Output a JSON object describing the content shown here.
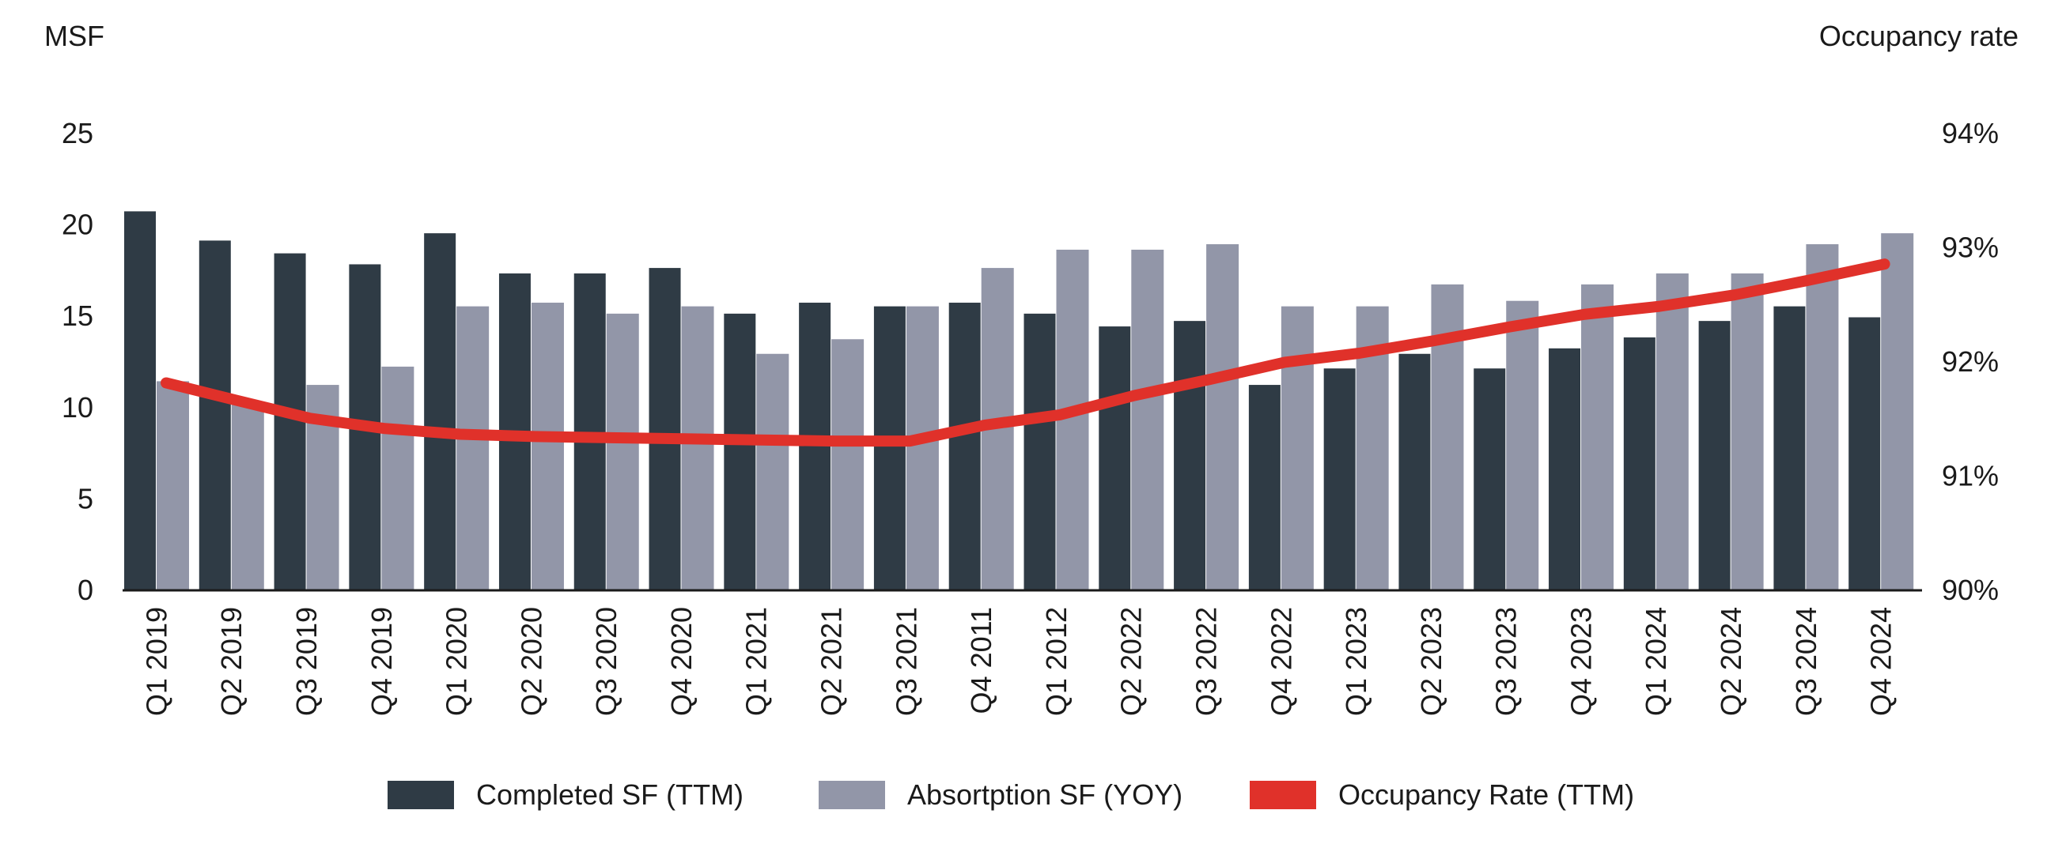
{
  "chart_data": {
    "type": "bar",
    "y_left_label": "MSF",
    "y_right_label": "Occupancy rate",
    "categories": [
      "Q1 2019",
      "Q2 2019",
      "Q3 2019",
      "Q4 2019",
      "Q1 2020",
      "Q2 2020",
      "Q3 2020",
      "Q4 2020",
      "Q1 2021",
      "Q2 2021",
      "Q3 2021",
      "Q4 2011",
      "Q1 2012",
      "Q2 2022",
      "Q3 2022",
      "Q4 2022",
      "Q1 2023",
      "Q2 2023",
      "Q3 2023",
      "Q4 2023",
      "Q1 2024",
      "Q2 2024",
      "Q3 2024",
      "Q4 2024"
    ],
    "y_left_lim": [
      0,
      25
    ],
    "y_left_ticks": [
      "0",
      "5",
      "10",
      "15",
      "20",
      "25"
    ],
    "y_right_lim": [
      90,
      94
    ],
    "y_right_ticks": [
      "90%",
      "91%",
      "92%",
      "93%",
      "94%"
    ],
    "grid": false,
    "legend_position": "bottom",
    "series": [
      {
        "name": "Completed SF (TTM)",
        "type": "bar",
        "axis": "left",
        "color": "#2f3b45",
        "values": [
          20.7,
          19.1,
          18.4,
          17.8,
          19.5,
          17.3,
          17.3,
          17.6,
          15.1,
          15.7,
          15.5,
          15.7,
          15.1,
          14.4,
          14.7,
          11.2,
          12.1,
          12.9,
          12.1,
          13.2,
          13.8,
          14.7,
          15.5,
          14.9
        ]
      },
      {
        "name": "Absorptio SF (YOY)",
        "display_name": "Absortption SF (YOY)",
        "type": "bar",
        "axis": "left",
        "color": "#9296a8",
        "values": [
          11.4,
          10.2,
          11.2,
          12.2,
          15.5,
          15.7,
          15.1,
          15.5,
          12.9,
          13.7,
          15.5,
          17.6,
          18.6,
          18.6,
          18.9,
          15.5,
          15.5,
          16.7,
          15.8,
          16.7,
          17.3,
          17.3,
          18.9,
          19.5
        ]
      },
      {
        "name": "Occupancy Rate (TTM)",
        "type": "line",
        "axis": "right",
        "color": "#e0312a",
        "values": [
          91.81,
          91.66,
          91.5,
          91.41,
          91.36,
          91.34,
          91.33,
          91.32,
          91.31,
          91.3,
          91.3,
          91.44,
          91.53,
          91.7,
          91.84,
          91.99,
          92.07,
          92.18,
          92.3,
          92.41,
          92.48,
          92.58,
          92.71,
          92.85
        ]
      }
    ]
  },
  "legend": [
    "Completed SF (TTM)",
    "Absortption SF (YOY)",
    "Occupancy Rate (TTM)"
  ]
}
